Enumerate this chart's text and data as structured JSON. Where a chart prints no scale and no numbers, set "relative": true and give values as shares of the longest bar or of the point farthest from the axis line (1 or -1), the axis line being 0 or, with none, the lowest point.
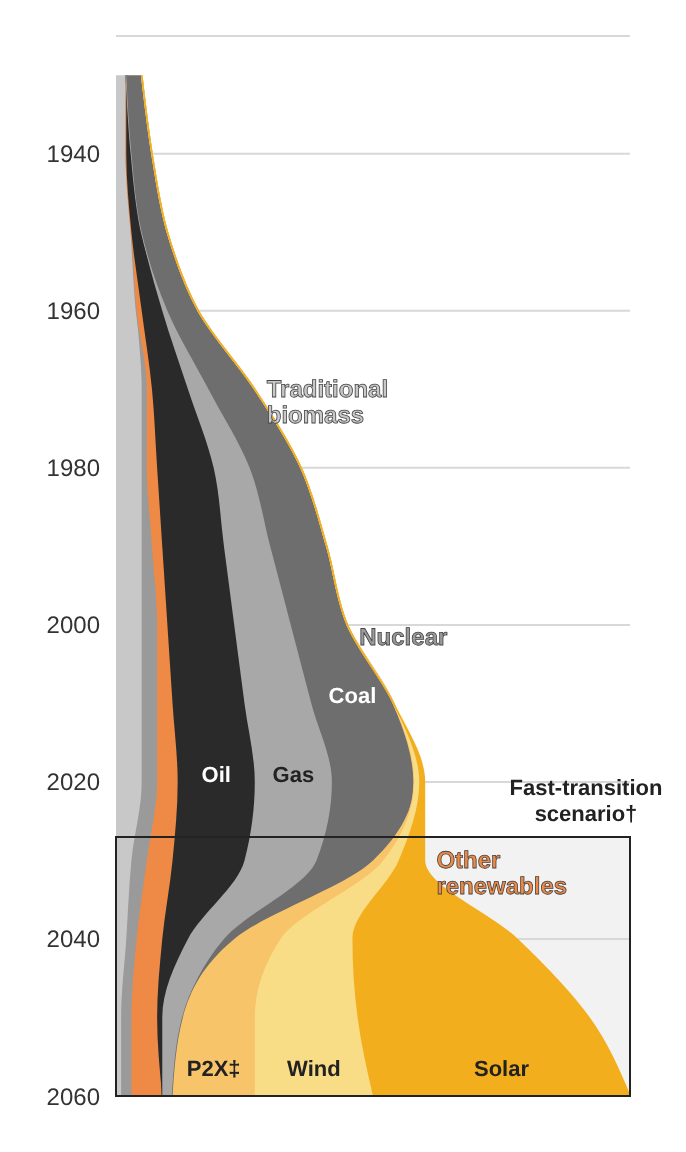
{
  "chart_data": {
    "type": "area",
    "stacked": true,
    "orientation": "horizontal",
    "relative": true,
    "x": [
      1930,
      1940,
      1950,
      1960,
      1970,
      1980,
      1990,
      2000,
      2010,
      2020,
      2030,
      2040,
      2050,
      2060
    ],
    "ylim": [
      2060,
      1925
    ],
    "yticks": [
      1940,
      1960,
      1980,
      2000,
      2020,
      2040,
      2060
    ],
    "grid": "y",
    "series": [
      {
        "name": "Traditional biomass",
        "color": "#c8c8c8",
        "values": [
          0.02,
          0.02,
          0.03,
          0.04,
          0.05,
          0.05,
          0.05,
          0.05,
          0.05,
          0.05,
          0.03,
          0.02,
          0.01,
          0.01
        ]
      },
      {
        "name": "Nuclear",
        "color": "#9a9a9a",
        "values": [
          0,
          0,
          0,
          0,
          0.01,
          0.01,
          0.02,
          0.03,
          0.03,
          0.03,
          0.03,
          0.02,
          0.02,
          0.02
        ]
      },
      {
        "name": "Other renewables",
        "color": "#ee8a45",
        "values": [
          0,
          0,
          0,
          0.01,
          0.01,
          0.02,
          0.02,
          0.02,
          0.03,
          0.04,
          0.05,
          0.05,
          0.05,
          0.06
        ]
      },
      {
        "name": "Oil",
        "color": "#2a2a2a",
        "values": [
          0,
          0.01,
          0.02,
          0.04,
          0.07,
          0.11,
          0.12,
          0.13,
          0.14,
          0.15,
          0.14,
          0.05,
          0.01,
          0
        ]
      },
      {
        "name": "Gas",
        "color": "#a8a8a8",
        "values": [
          0,
          0,
          0,
          0.01,
          0.04,
          0.07,
          0.09,
          0.11,
          0.13,
          0.15,
          0.14,
          0.07,
          0.04,
          0.02
        ]
      },
      {
        "name": "Coal",
        "color": "#6e6e6e",
        "values": [
          0.03,
          0.04,
          0.05,
          0.06,
          0.09,
          0.1,
          0.11,
          0.11,
          0.16,
          0.16,
          0.11,
          0.02,
          0,
          0
        ]
      },
      {
        "name": "P2X‡",
        "color": "#f7c46a",
        "values": [
          0,
          0,
          0,
          0,
          0,
          0,
          0,
          0,
          0,
          0,
          0.02,
          0.09,
          0.14,
          0.16
        ]
      },
      {
        "name": "Wind",
        "color": "#f9dc86",
        "values": [
          0,
          0,
          0,
          0,
          0,
          0,
          0,
          0,
          0,
          0.01,
          0.03,
          0.14,
          0.2,
          0.23
        ]
      },
      {
        "name": "Solar",
        "color": "#f2ae1c",
        "values": [
          0,
          0,
          0,
          0,
          0,
          0,
          0,
          0,
          0,
          0.01,
          0.05,
          0.32,
          0.45,
          0.5
        ]
      }
    ],
    "bands": [
      {
        "axis": "y",
        "from": 2027,
        "to": 2060,
        "label": "Fast-transition scenario†"
      }
    ]
  }
}
